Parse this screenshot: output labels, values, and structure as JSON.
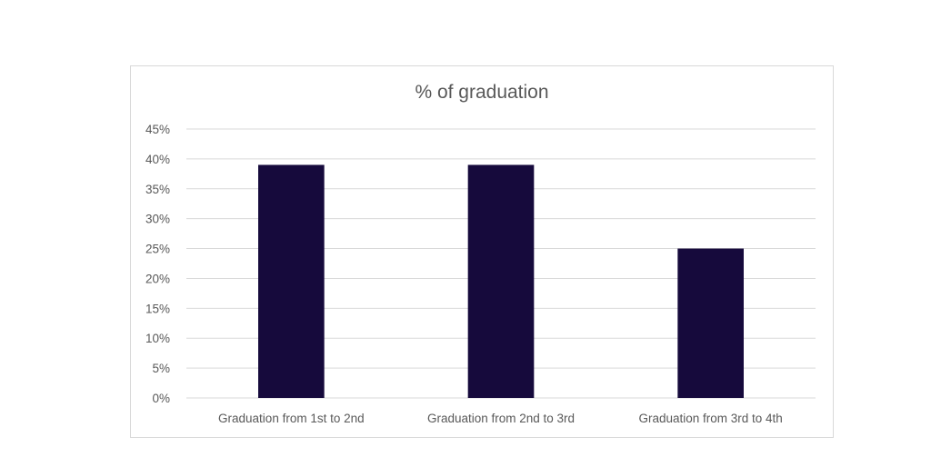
{
  "chart_data": {
    "type": "bar",
    "title": "% of graduation",
    "xlabel": "",
    "ylabel": "",
    "categories": [
      "Graduation from 1st to 2nd",
      "Graduation from 2nd to 3rd",
      "Graduation from 3rd to 4th"
    ],
    "values": [
      0.39,
      0.39,
      0.25
    ],
    "ylim": [
      0,
      0.45
    ],
    "yticks": [
      0,
      0.05,
      0.1,
      0.15,
      0.2,
      0.25,
      0.3,
      0.35,
      0.4,
      0.45
    ],
    "ytick_labels": [
      "0%",
      "5%",
      "10%",
      "15%",
      "20%",
      "25%",
      "30%",
      "35%",
      "40%",
      "45%"
    ],
    "grid": true,
    "legend": "none",
    "bar_color": "#160a3c",
    "grid_color": "#d9d9d9",
    "text_color": "#595959"
  }
}
